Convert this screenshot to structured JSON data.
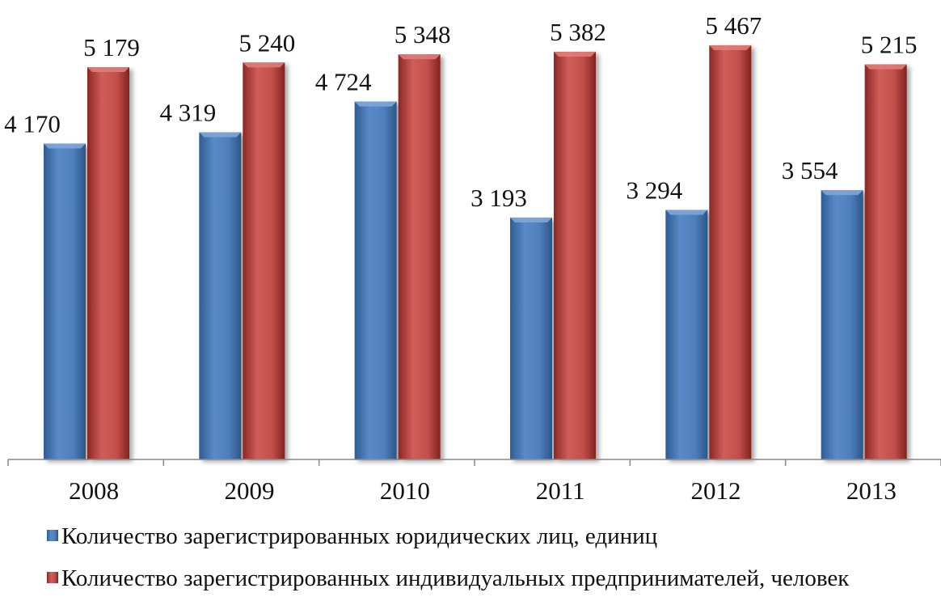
{
  "chart_data": {
    "type": "bar",
    "title": "",
    "xlabel": "",
    "ylabel": "",
    "categories": [
      "2008",
      "2009",
      "2010",
      "2011",
      "2012",
      "2013"
    ],
    "series": [
      {
        "name": "Количество зарегистрированных юридических лиц, единиц",
        "values": [
          4170,
          4319,
          4724,
          3193,
          3294,
          3554
        ],
        "labels": [
          "4 170",
          "4 319",
          "4 724",
          "3 193",
          "3 294",
          "3 554"
        ],
        "color": "#4F81BD"
      },
      {
        "name": "Количество зарегистрированных индивидуальных предпринимателей, человек",
        "values": [
          5179,
          5240,
          5348,
          5382,
          5467,
          5215
        ],
        "labels": [
          "5 179",
          "5 240",
          "5 348",
          "5 382",
          "5 467",
          "5 215"
        ],
        "color": "#C0504D"
      }
    ],
    "ylim": [
      0,
      6000
    ],
    "grid": false,
    "legend_position": "bottom-left"
  }
}
